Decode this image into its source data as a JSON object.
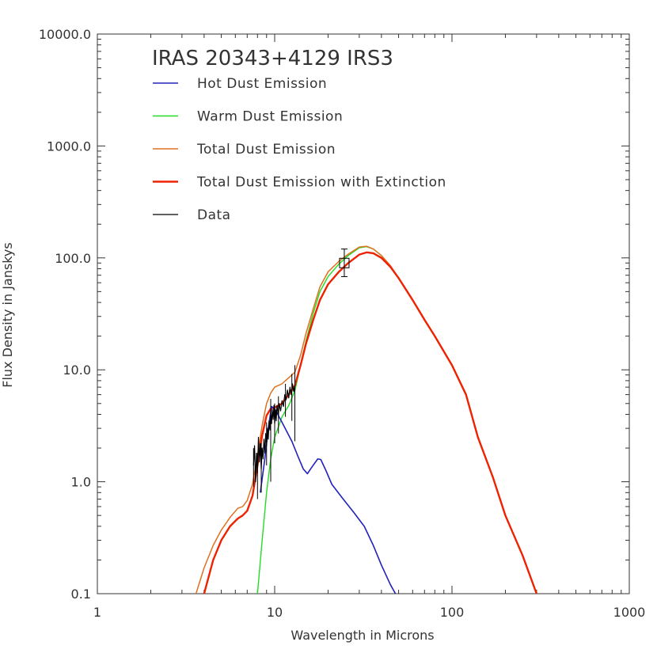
{
  "chart_data": {
    "type": "line",
    "title": "IRAS 20343+4129 IRS3",
    "xlabel": "Wavelength in Microns",
    "ylabel": "Flux Density in Janskys",
    "xscale": "log",
    "yscale": "log",
    "xlim": [
      1,
      1000
    ],
    "ylim": [
      0.1,
      10000
    ],
    "xticks": [
      1,
      10,
      100,
      1000
    ],
    "xtick_labels": [
      "1",
      "10",
      "100",
      "1000"
    ],
    "yticks": [
      0.1,
      1,
      10,
      100,
      1000,
      10000
    ],
    "ytick_labels": [
      "0.1",
      "1.0",
      "10.0",
      "100.0",
      "1000.0",
      "10000.0"
    ],
    "grid": false,
    "legend_position": "top-left",
    "series": [
      {
        "name": "Hot Dust Emission",
        "color": "#2222bb",
        "values": [
          [
            8.3,
            0.8
          ],
          [
            8.8,
            1.6
          ],
          [
            9.2,
            3.0
          ],
          [
            9.6,
            4.7
          ],
          [
            10.0,
            4.5
          ],
          [
            11.0,
            3.4
          ],
          [
            12.5,
            2.3
          ],
          [
            13.5,
            1.7
          ],
          [
            14.5,
            1.3
          ],
          [
            15.3,
            1.18
          ],
          [
            16.2,
            1.35
          ],
          [
            17.5,
            1.6
          ],
          [
            18.2,
            1.58
          ],
          [
            19.5,
            1.25
          ],
          [
            21.0,
            0.95
          ],
          [
            24.0,
            0.72
          ],
          [
            28.0,
            0.53
          ],
          [
            32.0,
            0.4
          ],
          [
            36.0,
            0.27
          ],
          [
            40.0,
            0.18
          ],
          [
            45.0,
            0.12
          ],
          [
            48.0,
            0.1
          ]
        ]
      },
      {
        "name": "Warm Dust Emission",
        "color": "#22dd22",
        "values": [
          [
            8.0,
            0.1
          ],
          [
            8.5,
            0.3
          ],
          [
            9.0,
            0.8
          ],
          [
            9.5,
            1.6
          ],
          [
            10.0,
            2.5
          ],
          [
            11.0,
            3.8
          ],
          [
            12.0,
            4.8
          ],
          [
            13.0,
            6.5
          ],
          [
            14.0,
            11.0
          ],
          [
            15.0,
            18.0
          ],
          [
            16.5,
            32.0
          ],
          [
            18.0,
            50.0
          ],
          [
            20.0,
            68.0
          ],
          [
            23.0,
            88.0
          ],
          [
            26.0,
            105.0
          ],
          [
            30.0,
            123.0
          ],
          [
            33.0,
            126.0
          ],
          [
            36.0,
            120.0
          ],
          [
            40.0,
            105.0
          ],
          [
            45.0,
            84.0
          ],
          [
            50.0,
            66.0
          ],
          [
            60.0,
            42.0
          ],
          [
            70.0,
            28.0
          ],
          [
            80.0,
            20.0
          ],
          [
            100.0,
            11.0
          ],
          [
            120.0,
            6.0
          ],
          [
            140.0,
            2.5
          ],
          [
            170.0,
            1.1
          ],
          [
            200.0,
            0.5
          ],
          [
            250.0,
            0.22
          ],
          [
            300.0,
            0.1
          ]
        ]
      },
      {
        "name": "Total Dust Emission",
        "color": "#e07020",
        "values": [
          [
            3.6,
            0.1
          ],
          [
            4.0,
            0.17
          ],
          [
            4.5,
            0.27
          ],
          [
            5.0,
            0.37
          ],
          [
            5.6,
            0.48
          ],
          [
            6.2,
            0.58
          ],
          [
            6.6,
            0.6
          ],
          [
            7.0,
            0.68
          ],
          [
            7.5,
            0.95
          ],
          [
            8.0,
            1.7
          ],
          [
            8.5,
            3.2
          ],
          [
            9.0,
            5.0
          ],
          [
            9.5,
            6.2
          ],
          [
            10.0,
            7.0
          ],
          [
            11.0,
            7.5
          ],
          [
            12.0,
            8.5
          ],
          [
            13.0,
            9.5
          ],
          [
            14.0,
            13.5
          ],
          [
            15.0,
            21.0
          ],
          [
            16.5,
            35.0
          ],
          [
            18.0,
            55.0
          ],
          [
            20.0,
            75.0
          ],
          [
            23.0,
            93.0
          ],
          [
            26.0,
            108.0
          ],
          [
            30.0,
            125.0
          ],
          [
            33.0,
            127.0
          ],
          [
            36.0,
            120.0
          ],
          [
            40.0,
            105.0
          ],
          [
            45.0,
            85.0
          ],
          [
            50.0,
            66.0
          ],
          [
            60.0,
            42.0
          ],
          [
            70.0,
            28.0
          ],
          [
            80.0,
            20.0
          ],
          [
            100.0,
            11.0
          ],
          [
            120.0,
            6.0
          ],
          [
            140.0,
            2.5
          ],
          [
            170.0,
            1.1
          ],
          [
            200.0,
            0.5
          ],
          [
            250.0,
            0.22
          ],
          [
            300.0,
            0.1
          ]
        ]
      },
      {
        "name": "Total Dust Emission with Extinction",
        "color": "#ee2200",
        "values": [
          [
            4.0,
            0.1
          ],
          [
            4.5,
            0.2
          ],
          [
            5.0,
            0.3
          ],
          [
            5.6,
            0.4
          ],
          [
            6.2,
            0.47
          ],
          [
            6.6,
            0.5
          ],
          [
            7.0,
            0.55
          ],
          [
            7.5,
            0.75
          ],
          [
            8.0,
            1.4
          ],
          [
            8.5,
            2.6
          ],
          [
            9.0,
            3.9
          ],
          [
            9.5,
            4.5
          ],
          [
            10.0,
            4.6
          ],
          [
            11.0,
            5.0
          ],
          [
            12.0,
            6.0
          ],
          [
            13.0,
            7.2
          ],
          [
            14.0,
            11.0
          ],
          [
            15.0,
            17.0
          ],
          [
            16.5,
            28.0
          ],
          [
            18.0,
            42.0
          ],
          [
            20.0,
            58.0
          ],
          [
            23.0,
            75.0
          ],
          [
            26.0,
            90.0
          ],
          [
            30.0,
            107.0
          ],
          [
            33.0,
            112.0
          ],
          [
            36.0,
            110.0
          ],
          [
            40.0,
            100.0
          ],
          [
            45.0,
            83.0
          ],
          [
            50.0,
            66.0
          ],
          [
            60.0,
            42.0
          ],
          [
            70.0,
            28.0
          ],
          [
            80.0,
            20.0
          ],
          [
            100.0,
            11.0
          ],
          [
            120.0,
            6.0
          ],
          [
            140.0,
            2.5
          ],
          [
            170.0,
            1.1
          ],
          [
            200.0,
            0.5
          ],
          [
            250.0,
            0.22
          ],
          [
            300.0,
            0.1
          ]
        ]
      },
      {
        "name": "Data",
        "color": "#000000",
        "values": [
          [
            7.6,
            1.4
          ],
          [
            7.7,
            2.1
          ],
          [
            7.8,
            1.0
          ],
          [
            7.9,
            1.8
          ],
          [
            8.0,
            1.2
          ],
          [
            8.1,
            2.5
          ],
          [
            8.2,
            1.5
          ],
          [
            8.3,
            2.2
          ],
          [
            8.4,
            1.3
          ],
          [
            8.5,
            2.0
          ],
          [
            8.6,
            1.6
          ],
          [
            8.7,
            2.4
          ],
          [
            8.8,
            1.8
          ],
          [
            8.9,
            2.7
          ],
          [
            9.0,
            2.1
          ],
          [
            9.1,
            3.0
          ],
          [
            9.2,
            2.4
          ],
          [
            9.3,
            3.5
          ],
          [
            9.4,
            2.9
          ],
          [
            9.5,
            4.2
          ],
          [
            9.6,
            3.3
          ],
          [
            9.7,
            4.4
          ],
          [
            9.8,
            3.6
          ],
          [
            9.9,
            4.8
          ],
          [
            10.0,
            3.3
          ],
          [
            10.1,
            4.4
          ],
          [
            10.2,
            3.5
          ],
          [
            10.3,
            4.8
          ],
          [
            10.5,
            3.9
          ],
          [
            10.6,
            5.0
          ],
          [
            10.8,
            4.3
          ],
          [
            11.0,
            5.3
          ],
          [
            11.2,
            4.7
          ],
          [
            11.4,
            6.0
          ],
          [
            11.6,
            5.4
          ],
          [
            11.8,
            6.6
          ],
          [
            12.0,
            5.6
          ],
          [
            12.2,
            7.0
          ],
          [
            12.4,
            6.0
          ],
          [
            12.6,
            7.5
          ],
          [
            12.8,
            6.4
          ],
          [
            13.0,
            7.2
          ]
        ],
        "errors": [
          [
            7.6,
            0.9,
            2.0
          ],
          [
            8.0,
            0.7,
            1.8
          ],
          [
            8.4,
            0.8,
            2.2
          ],
          [
            9.0,
            1.4,
            3.4
          ],
          [
            9.5,
            1.0,
            5.5
          ],
          [
            10.0,
            2.2,
            5.0
          ],
          [
            10.5,
            2.7,
            5.8
          ],
          [
            11.5,
            3.8,
            7.5
          ],
          [
            12.5,
            3.5,
            9.2
          ],
          [
            13.0,
            2.3,
            11.0
          ]
        ],
        "box_points": [
          [
            24.7,
            90.0,
            68.0,
            120.0
          ]
        ]
      }
    ]
  }
}
